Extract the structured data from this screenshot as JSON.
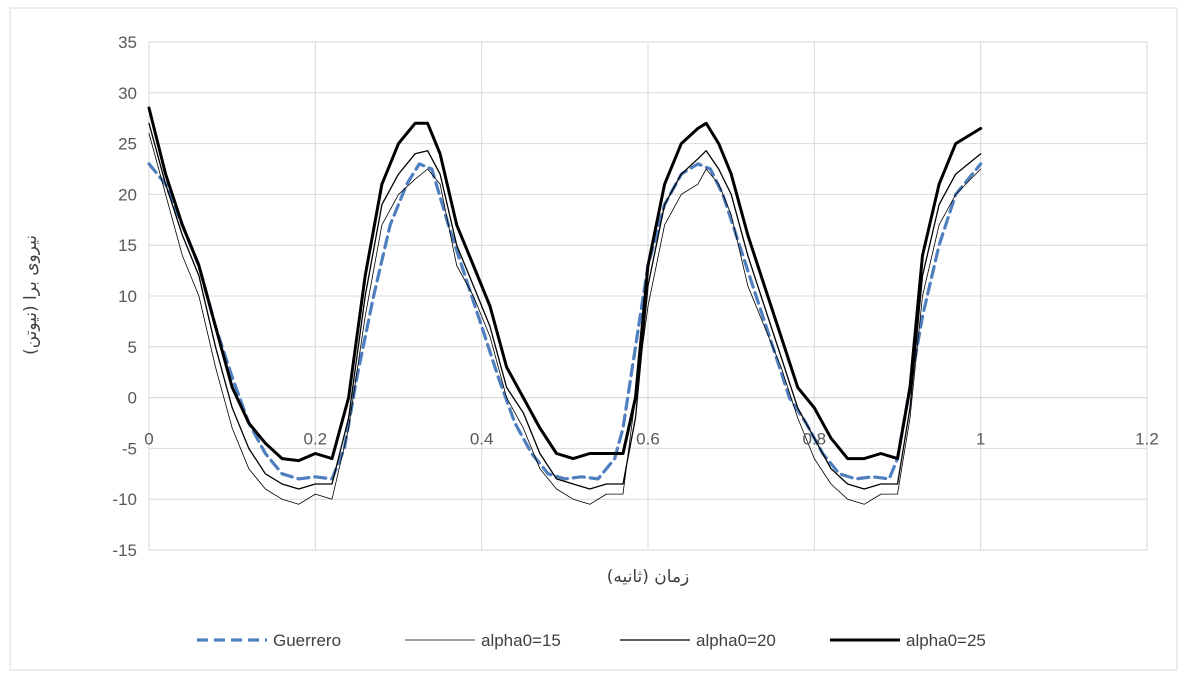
{
  "chart_data": {
    "type": "line",
    "title": "",
    "xlabel": "زمان (ثانیه)",
    "ylabel": "نیروی برا (نیوتن)",
    "xlim": [
      0,
      1.2
    ],
    "ylim": [
      -15,
      35
    ],
    "x_ticks": [
      0,
      0.2,
      0.4,
      0.6,
      0.8,
      1,
      1.2
    ],
    "x_tick_labels": [
      "0",
      "0.2",
      "0.4",
      "0.6",
      "0.8",
      "1",
      "1.2"
    ],
    "y_ticks": [
      -15,
      -10,
      -5,
      0,
      5,
      10,
      15,
      20,
      25,
      30,
      35
    ],
    "y_tick_labels": [
      "-15",
      "-10",
      "-5",
      "0",
      "5",
      "10",
      "15",
      "20",
      "25",
      "30",
      "35"
    ],
    "grid": true,
    "legend_position": "bottom",
    "series": [
      {
        "name": "Guerrero",
        "color": "#4f7fbf",
        "style": "dashed",
        "x": [
          0,
          0.02,
          0.04,
          0.06,
          0.08,
          0.1,
          0.12,
          0.14,
          0.16,
          0.18,
          0.2,
          0.22,
          0.235,
          0.25,
          0.27,
          0.29,
          0.31,
          0.325,
          0.34,
          0.36,
          0.38,
          0.4,
          0.42,
          0.44,
          0.46,
          0.48,
          0.5,
          0.52,
          0.54,
          0.56,
          0.57,
          0.585,
          0.6,
          0.62,
          0.64,
          0.66,
          0.675,
          0.69,
          0.71,
          0.73,
          0.75,
          0.77,
          0.79,
          0.81,
          0.83,
          0.85,
          0.87,
          0.89,
          0.9,
          0.915,
          0.93,
          0.95,
          0.97,
          1.0
        ],
        "y": [
          23,
          21,
          17,
          13,
          7,
          2,
          -2.5,
          -5.5,
          -7.5,
          -8,
          -7.8,
          -8,
          -5,
          2,
          10,
          17,
          21,
          23,
          22.5,
          17,
          12,
          7,
          2,
          -2.5,
          -5.5,
          -7.5,
          -8,
          -7.8,
          -8,
          -6,
          -3,
          5,
          13,
          19,
          22,
          23,
          22.5,
          20,
          15,
          10,
          5,
          0,
          -2.5,
          -5.5,
          -7.5,
          -8,
          -7.8,
          -8,
          -6,
          1,
          8,
          15,
          20,
          23
        ]
      },
      {
        "name": "alpha0=15",
        "color": "#000000",
        "style": "solid-thin",
        "x": [
          0,
          0.02,
          0.04,
          0.06,
          0.08,
          0.1,
          0.12,
          0.14,
          0.16,
          0.18,
          0.2,
          0.22,
          0.24,
          0.26,
          0.28,
          0.3,
          0.32,
          0.335,
          0.35,
          0.37,
          0.39,
          0.41,
          0.43,
          0.45,
          0.47,
          0.49,
          0.51,
          0.53,
          0.55,
          0.57,
          0.58,
          0.6,
          0.62,
          0.64,
          0.66,
          0.67,
          0.685,
          0.7,
          0.72,
          0.74,
          0.76,
          0.78,
          0.8,
          0.82,
          0.84,
          0.86,
          0.88,
          0.9,
          0.915,
          0.93,
          0.95,
          0.97,
          1.0
        ],
        "y": [
          26,
          20,
          14,
          10,
          3,
          -3,
          -7,
          -9,
          -10,
          -10.5,
          -9.5,
          -10,
          -3,
          8,
          17,
          20,
          21.5,
          22.5,
          21,
          13,
          10,
          6,
          0,
          -3,
          -7,
          -9,
          -10,
          -10.5,
          -9.5,
          -9.5,
          -3,
          9,
          17,
          20,
          21,
          22.5,
          21,
          18,
          11,
          7,
          3,
          -2,
          -6,
          -8.5,
          -10,
          -10.5,
          -9.5,
          -9.5,
          -2,
          10,
          17,
          20,
          22.5
        ]
      },
      {
        "name": "alpha0=20",
        "color": "#000000",
        "style": "solid",
        "x": [
          0,
          0.02,
          0.04,
          0.06,
          0.08,
          0.1,
          0.12,
          0.14,
          0.16,
          0.18,
          0.2,
          0.22,
          0.24,
          0.26,
          0.28,
          0.3,
          0.32,
          0.335,
          0.35,
          0.37,
          0.39,
          0.41,
          0.43,
          0.45,
          0.47,
          0.49,
          0.51,
          0.53,
          0.55,
          0.57,
          0.585,
          0.6,
          0.62,
          0.64,
          0.66,
          0.67,
          0.685,
          0.7,
          0.72,
          0.74,
          0.76,
          0.78,
          0.8,
          0.82,
          0.84,
          0.86,
          0.88,
          0.9,
          0.915,
          0.93,
          0.95,
          0.97,
          1.0
        ],
        "y": [
          27,
          21,
          16,
          12,
          5,
          -1,
          -5,
          -7.5,
          -8.5,
          -9,
          -8.5,
          -8.5,
          -2,
          10,
          19,
          22,
          24,
          24.3,
          22,
          15,
          11,
          7,
          1,
          -1.5,
          -5.5,
          -8,
          -8.5,
          -9,
          -8.5,
          -8.5,
          -2,
          11,
          19,
          22,
          23.5,
          24.3,
          22.5,
          20,
          14,
          9,
          4,
          -1,
          -4,
          -7,
          -8.5,
          -9,
          -8.5,
          -8.5,
          -1,
          12,
          19,
          22,
          24
        ]
      },
      {
        "name": "alpha0=25",
        "color": "#000000",
        "style": "solid-thick",
        "x": [
          0,
          0.02,
          0.04,
          0.06,
          0.08,
          0.1,
          0.12,
          0.14,
          0.16,
          0.18,
          0.2,
          0.22,
          0.24,
          0.26,
          0.28,
          0.3,
          0.32,
          0.335,
          0.35,
          0.37,
          0.39,
          0.41,
          0.43,
          0.45,
          0.47,
          0.49,
          0.51,
          0.53,
          0.55,
          0.57,
          0.585,
          0.6,
          0.62,
          0.64,
          0.66,
          0.67,
          0.685,
          0.7,
          0.72,
          0.74,
          0.76,
          0.78,
          0.8,
          0.82,
          0.84,
          0.86,
          0.88,
          0.9,
          0.915,
          0.93,
          0.95,
          0.97,
          1.0
        ],
        "y": [
          28.5,
          22,
          17,
          13,
          7,
          1,
          -2.5,
          -4.5,
          -6,
          -6.2,
          -5.5,
          -6,
          0,
          12,
          21,
          25,
          27,
          27,
          24,
          17,
          13,
          9,
          3,
          0,
          -3,
          -5.5,
          -6,
          -5.5,
          -5.5,
          -5.5,
          0,
          13,
          21,
          25,
          26.5,
          27,
          25,
          22,
          16,
          11,
          6,
          1,
          -1,
          -4,
          -6,
          -6,
          -5.5,
          -6,
          1,
          14,
          21,
          25,
          26.5
        ]
      }
    ]
  }
}
